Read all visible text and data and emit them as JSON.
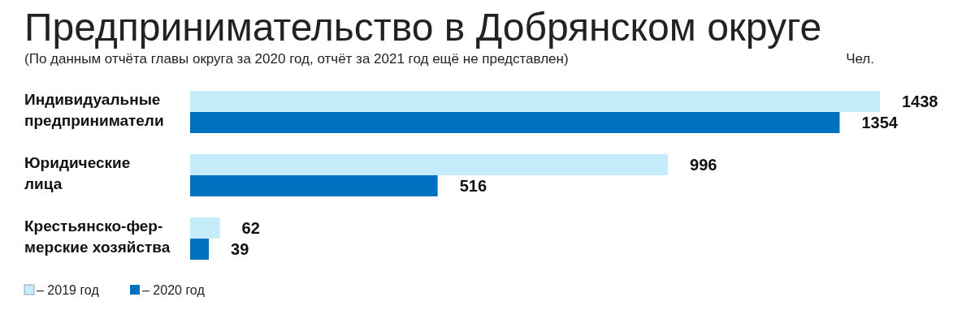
{
  "chart_data": {
    "type": "bar",
    "orientation": "horizontal",
    "title": "Предпринимательство в Добрянском округе",
    "subtitle": "(По данным отчёта главы округа за 2020 год, отчёт за 2021 год ещё не представлен)",
    "annotations": [
      "Чел."
    ],
    "categories": [
      "Индивидуальные\nпредприниматели",
      "Юридические\nлица",
      "Крестьянско-фер-\nмерские хозяйства"
    ],
    "series": [
      {
        "name": "– 2019 год",
        "color": "#c5ecfa",
        "values": [
          1438,
          996,
          62
        ]
      },
      {
        "name": "– 2020 год",
        "color": "#0070c0",
        "values": [
          1354,
          516,
          39
        ]
      }
    ],
    "data_labels": true,
    "legend": "bottom left",
    "grid": false
  }
}
